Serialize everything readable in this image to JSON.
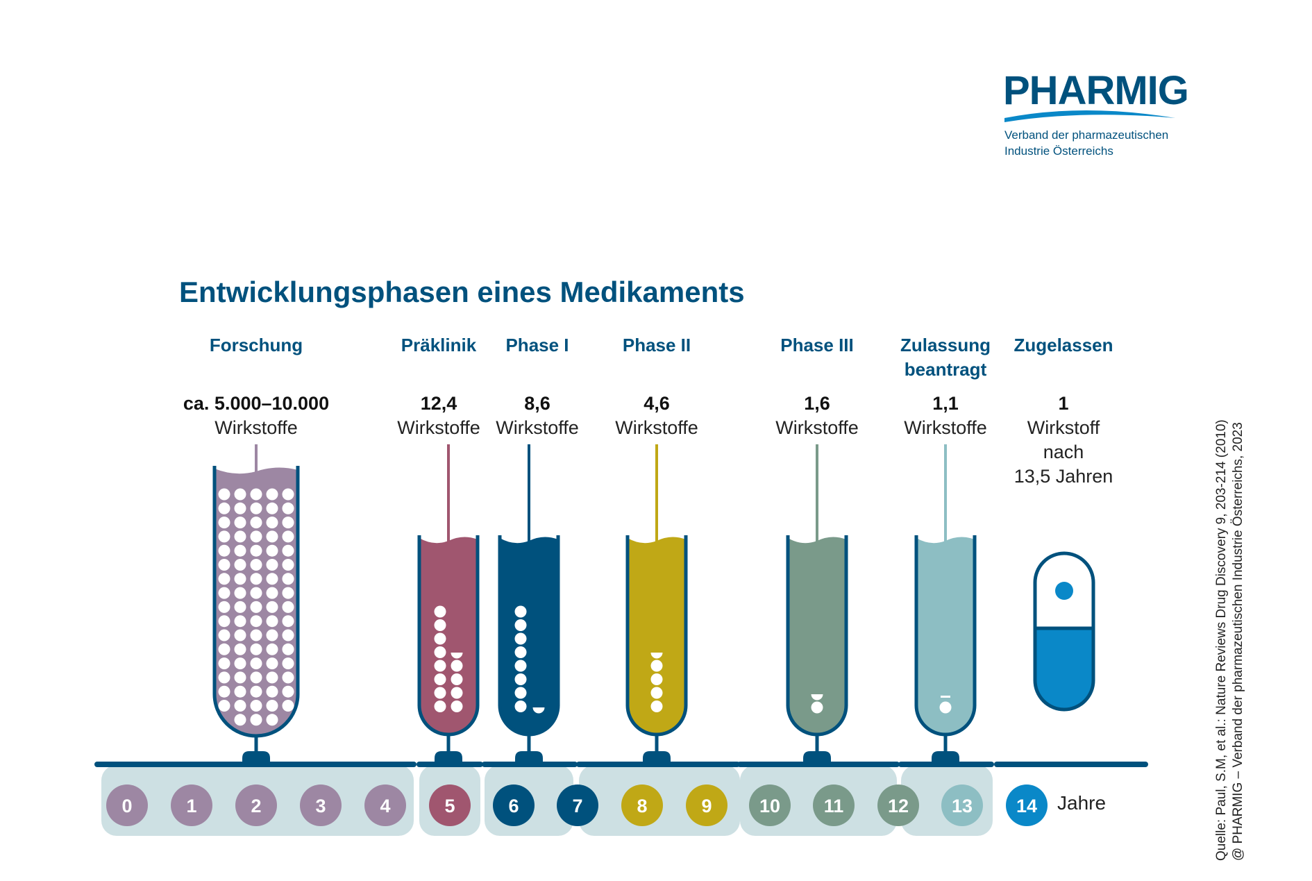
{
  "logo": {
    "wordmark": "PHARMIG",
    "tagline_line1": "Verband der pharmazeutischen",
    "tagline_line2": "Industrie Österreichs"
  },
  "title": "Entwicklungsphasen eines Medikaments",
  "phases": [
    {
      "id": "forschung",
      "label_lines": [
        "Forschung"
      ],
      "count": "ca. 5.000–10.000",
      "unit_lines": [
        "Wirkstoffe"
      ],
      "color": "#9d87a3",
      "years": [
        0,
        1,
        2,
        3,
        4
      ]
    },
    {
      "id": "praeklinik",
      "label_lines": [
        "Präklinik"
      ],
      "count": "12,4",
      "unit_lines": [
        "Wirkstoffe"
      ],
      "color": "#a0566f",
      "years": [
        5
      ]
    },
    {
      "id": "phase1",
      "label_lines": [
        "Phase I"
      ],
      "count": "8,6",
      "unit_lines": [
        "Wirkstoffe"
      ],
      "color": "#00517d",
      "years": [
        6,
        7
      ]
    },
    {
      "id": "phase2",
      "label_lines": [
        "Phase II"
      ],
      "count": "4,6",
      "unit_lines": [
        "Wirkstoffe"
      ],
      "color": "#c0a816",
      "years": [
        8,
        9
      ]
    },
    {
      "id": "phase3",
      "label_lines": [
        "Phase III"
      ],
      "count": "1,6",
      "unit_lines": [
        "Wirkstoffe"
      ],
      "color": "#7a9a8a",
      "years": [
        10,
        11,
        12
      ]
    },
    {
      "id": "zulassung",
      "label_lines": [
        "Zulassung",
        "beantragt"
      ],
      "count": "1,1",
      "unit_lines": [
        "Wirkstoffe"
      ],
      "color": "#8dbec3",
      "years": [
        13
      ]
    },
    {
      "id": "zugelassen",
      "label_lines": [
        "Zugelassen"
      ],
      "count": "1",
      "unit_lines": [
        "Wirkstoff",
        "nach",
        "13,5 Jahren"
      ],
      "color": "#0a88c8",
      "years": [
        14
      ]
    }
  ],
  "timeline": {
    "years_label": "Jahre",
    "year_numbers": [
      "0",
      "1",
      "2",
      "3",
      "4",
      "5",
      "6",
      "7",
      "8",
      "9",
      "10",
      "11",
      "12",
      "13",
      "14"
    ],
    "year_colors": [
      "#9d87a3",
      "#9d87a3",
      "#9d87a3",
      "#9d87a3",
      "#9d87a3",
      "#a0566f",
      "#00517d",
      "#00517d",
      "#c0a816",
      "#c0a816",
      "#7a9a8a",
      "#7a9a8a",
      "#7a9a8a",
      "#8dbec3",
      "#0a88c8"
    ]
  },
  "source": {
    "line1": "Quelle: Paul, S.M, et al.: Nature Reviews Drug Discovery 9, 203-214 (2010)",
    "line2": "@ PHARMIG – Verband der pharmazeutischen Industrie Österreichs, 2023"
  },
  "colors": {
    "title": "#00517d",
    "axis": "#00517d",
    "band": "#cde0e3",
    "logo": "#00517d",
    "logo_swoosh": "#0a88c8"
  }
}
